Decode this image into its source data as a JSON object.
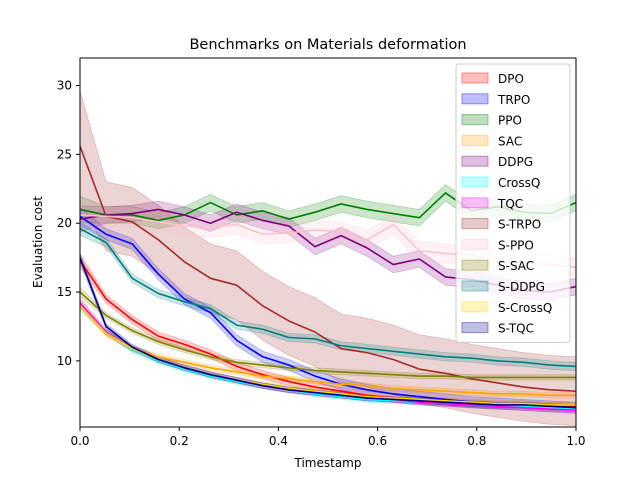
{
  "chart_data": {
    "type": "line",
    "title": "Benchmarks on Materials deformation",
    "xlabel": "Timestamp",
    "ylabel": "Evaluation cost",
    "xlim": [
      0,
      1
    ],
    "ylim": [
      5.2,
      32
    ],
    "xticks": [
      "0.0",
      "0.2",
      "0.4",
      "0.6",
      "0.8",
      "1.0"
    ],
    "yticks": [
      "10",
      "15",
      "20",
      "25",
      "30"
    ],
    "grid": false,
    "legend_position": "top-right",
    "x": [
      0,
      0.0526,
      0.1053,
      0.1579,
      0.2105,
      0.2632,
      0.3158,
      0.3684,
      0.4211,
      0.4737,
      0.5263,
      0.5789,
      0.6316,
      0.6842,
      0.7368,
      0.7895,
      0.8421,
      0.8947,
      0.9474,
      1.0
    ],
    "series": [
      {
        "name": "DPO",
        "color": "#ff0000",
        "alpha": 0.2,
        "values": [
          17.3,
          14.5,
          13.0,
          11.8,
          11.2,
          10.5,
          9.6,
          9.0,
          8.5,
          8.1,
          7.8,
          7.5,
          7.3,
          7.1,
          7.0,
          6.9,
          6.8,
          6.8,
          6.7,
          6.7
        ],
        "band": 0.3
      },
      {
        "name": "TRPO",
        "color": "#0000ff",
        "alpha": 0.2,
        "values": [
          20.5,
          19.2,
          18.5,
          16.3,
          14.5,
          13.5,
          11.5,
          10.3,
          9.7,
          8.9,
          8.3,
          7.9,
          7.6,
          7.4,
          7.2,
          7.0,
          6.9,
          6.8,
          6.7,
          6.6
        ],
        "band": 0.4
      },
      {
        "name": "PPO",
        "color": "#008000",
        "alpha": 0.2,
        "values": [
          21.0,
          20.6,
          20.6,
          20.2,
          20.6,
          21.5,
          20.6,
          20.9,
          20.3,
          20.8,
          21.4,
          21.0,
          20.7,
          20.4,
          22.2,
          20.9,
          21.2,
          20.8,
          20.7,
          21.5
        ],
        "band": 0.6
      },
      {
        "name": "SAC",
        "color": "#ffa500",
        "alpha": 0.2,
        "values": [
          14.2,
          12.0,
          10.9,
          10.3,
          9.9,
          9.5,
          9.2,
          8.9,
          8.7,
          8.5,
          8.3,
          8.2,
          8.0,
          7.9,
          7.8,
          7.7,
          7.6,
          7.6,
          7.5,
          7.5
        ],
        "band": 0.2
      },
      {
        "name": "DDPG",
        "color": "#800080",
        "alpha": 0.2,
        "values": [
          20.3,
          20.6,
          20.7,
          21.0,
          20.6,
          20.0,
          20.8,
          20.2,
          19.8,
          18.3,
          19.1,
          18.2,
          17.0,
          17.4,
          16.1,
          15.9,
          15.5,
          15.1,
          15.0,
          15.4
        ],
        "band": 0.6
      },
      {
        "name": "CrossQ",
        "color": "#00ffff",
        "alpha": 0.2,
        "values": [
          14.0,
          12.1,
          10.8,
          10.0,
          9.4,
          8.9,
          8.5,
          8.2,
          7.9,
          7.6,
          7.4,
          7.2,
          7.1,
          7.0,
          6.9,
          6.8,
          6.7,
          6.7,
          6.6,
          6.5
        ],
        "band": 0.2
      },
      {
        "name": "TQC",
        "color": "#ff00ff",
        "alpha": 0.2,
        "values": [
          14.2,
          12.1,
          10.9,
          10.1,
          9.5,
          9.0,
          8.6,
          8.2,
          7.9,
          7.7,
          7.5,
          7.3,
          7.2,
          7.0,
          6.9,
          6.8,
          6.7,
          6.6,
          6.5,
          6.4
        ],
        "band": 0.2
      },
      {
        "name": "S-TRPO",
        "color": "#a52a2a",
        "alpha": 0.2,
        "values": [
          25.6,
          20.5,
          20.1,
          18.8,
          17.2,
          16.0,
          15.5,
          14.0,
          12.9,
          12.1,
          10.9,
          10.6,
          10.1,
          9.4,
          9.1,
          8.7,
          8.4,
          8.1,
          7.9,
          7.8
        ],
        "band": 2.5
      },
      {
        "name": "S-PPO",
        "color": "#ffc0cb",
        "alpha": 0.2,
        "values": [
          20.6,
          20.5,
          20.4,
          20.1,
          19.8,
          19.7,
          19.9,
          19.2,
          19.3,
          19.5,
          19.4,
          18.8,
          19.9,
          18.0,
          17.8,
          17.7,
          17.2,
          17.1,
          17.0,
          16.8
        ],
        "band": 0.7
      },
      {
        "name": "S-SAC",
        "color": "#808000",
        "alpha": 0.2,
        "values": [
          15.0,
          13.3,
          12.2,
          11.4,
          10.8,
          10.3,
          9.9,
          9.7,
          9.5,
          9.3,
          9.2,
          9.1,
          9.0,
          8.9,
          8.9,
          8.8,
          8.8,
          8.8,
          8.8,
          8.8
        ],
        "band": 0.2
      },
      {
        "name": "S-DDPG",
        "color": "#008080",
        "alpha": 0.2,
        "values": [
          19.6,
          18.6,
          16.0,
          14.9,
          14.3,
          13.8,
          12.6,
          12.3,
          11.7,
          11.6,
          11.1,
          10.9,
          10.7,
          10.5,
          10.3,
          10.2,
          10.0,
          9.9,
          9.7,
          9.6
        ],
        "band": 0.3
      },
      {
        "name": "S-CrossQ",
        "color": "#ffd700",
        "alpha": 0.2,
        "values": [
          14.0,
          12.0,
          10.9,
          10.1,
          9.5,
          9.0,
          8.6,
          8.3,
          8.0,
          7.8,
          7.6,
          7.4,
          7.3,
          7.2,
          7.1,
          7.0,
          6.9,
          6.9,
          6.8,
          6.8
        ],
        "band": 0.2
      },
      {
        "name": "S-TQC",
        "color": "#00008b",
        "alpha": 0.2,
        "values": [
          17.5,
          12.5,
          11.0,
          10.1,
          9.5,
          9.0,
          8.6,
          8.2,
          7.9,
          7.7,
          7.5,
          7.3,
          7.2,
          7.1,
          7.0,
          6.9,
          6.8,
          6.8,
          6.7,
          6.6
        ],
        "band": 0.2
      }
    ]
  }
}
